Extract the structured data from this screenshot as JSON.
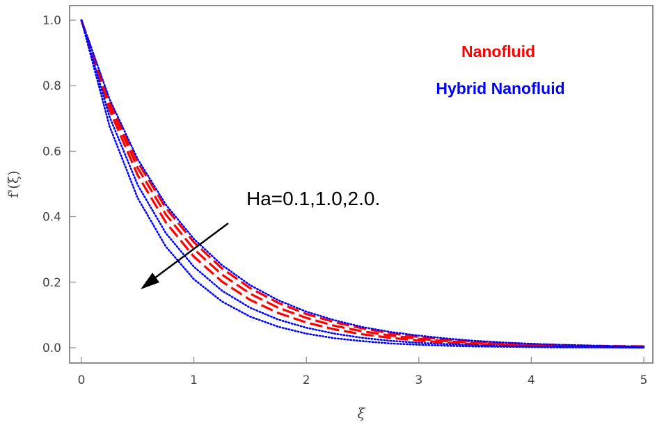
{
  "chart_data": {
    "type": "line",
    "title": "",
    "xlabel": "ξ",
    "ylabel": "f'(ξ)",
    "xlim": [
      0,
      5
    ],
    "ylim": [
      0,
      1.0
    ],
    "x_ticks": [
      0,
      1,
      2,
      3,
      4,
      5
    ],
    "y_ticks": [
      0.0,
      0.2,
      0.4,
      0.6,
      0.8,
      1.0
    ],
    "x_tick_labels": [
      "0",
      "1",
      "2",
      "3",
      "4",
      "5"
    ],
    "y_tick_labels": [
      "0.0",
      "0.2",
      "0.4",
      "0.6",
      "0.8",
      "1.0"
    ],
    "grid": false,
    "legend_position": "top-right",
    "legend": [
      {
        "label": "Nanofluid",
        "color": "#ff0000",
        "style": "dashed"
      },
      {
        "label": "Hybrid Nanofluid",
        "color": "#0000ff",
        "style": "dotted"
      }
    ],
    "annotation": {
      "text": "Ha=0.1,1.0,2.0.",
      "arrow": "pointing toward lower-left (increasing Ha)"
    },
    "x": [
      0,
      0.25,
      0.5,
      0.75,
      1.0,
      1.25,
      1.5,
      1.75,
      2.0,
      2.25,
      2.5,
      2.75,
      3.0,
      3.25,
      3.5,
      3.75,
      4.0,
      4.25,
      4.5,
      4.75,
      5.0
    ],
    "series": [
      {
        "group": "Nanofluid",
        "ha": 0.1,
        "color": "#ff0000",
        "style": "dashed",
        "values": [
          1.0,
          0.753,
          0.567,
          0.427,
          0.322,
          0.242,
          0.182,
          0.137,
          0.103,
          0.078,
          0.059,
          0.044,
          0.033,
          0.025,
          0.019,
          0.014,
          0.011,
          0.008,
          0.006,
          0.005,
          0.004
        ]
      },
      {
        "group": "Nanofluid",
        "ha": 1.0,
        "color": "#ff0000",
        "style": "dashed",
        "values": [
          1.0,
          0.741,
          0.549,
          0.407,
          0.301,
          0.223,
          0.165,
          0.122,
          0.091,
          0.067,
          0.05,
          0.037,
          0.027,
          0.02,
          0.015,
          0.011,
          0.008,
          0.006,
          0.005,
          0.003,
          0.003
        ]
      },
      {
        "group": "Nanofluid",
        "ha": 2.0,
        "color": "#ff0000",
        "style": "dashed",
        "values": [
          1.0,
          0.726,
          0.527,
          0.383,
          0.278,
          0.202,
          0.146,
          0.106,
          0.077,
          0.056,
          0.041,
          0.03,
          0.022,
          0.016,
          0.011,
          0.008,
          0.006,
          0.004,
          0.003,
          0.002,
          0.002
        ]
      },
      {
        "group": "Hybrid Nanofluid",
        "ha": 0.1,
        "color": "#0000ff",
        "style": "dotted",
        "values": [
          1.0,
          0.759,
          0.576,
          0.437,
          0.332,
          0.252,
          0.191,
          0.145,
          0.11,
          0.084,
          0.063,
          0.048,
          0.037,
          0.028,
          0.021,
          0.016,
          0.012,
          0.009,
          0.007,
          0.005,
          0.004
        ]
      },
      {
        "group": "Hybrid Nanofluid",
        "ha": 1.0,
        "color": "#0000ff",
        "style": "dotted",
        "values": [
          1.0,
          0.705,
          0.497,
          0.35,
          0.247,
          0.174,
          0.122,
          0.086,
          0.061,
          0.043,
          0.03,
          0.021,
          0.015,
          0.011,
          0.008,
          0.005,
          0.004,
          0.003,
          0.002,
          0.001,
          0.001
        ]
      },
      {
        "group": "Hybrid Nanofluid",
        "ha": 2.0,
        "color": "#0000ff",
        "style": "dotted",
        "values": [
          1.0,
          0.676,
          0.457,
          0.309,
          0.209,
          0.141,
          0.095,
          0.064,
          0.043,
          0.029,
          0.02,
          0.013,
          0.009,
          0.006,
          0.004,
          0.003,
          0.002,
          0.001,
          0.001,
          0.001,
          0.0
        ]
      }
    ]
  }
}
